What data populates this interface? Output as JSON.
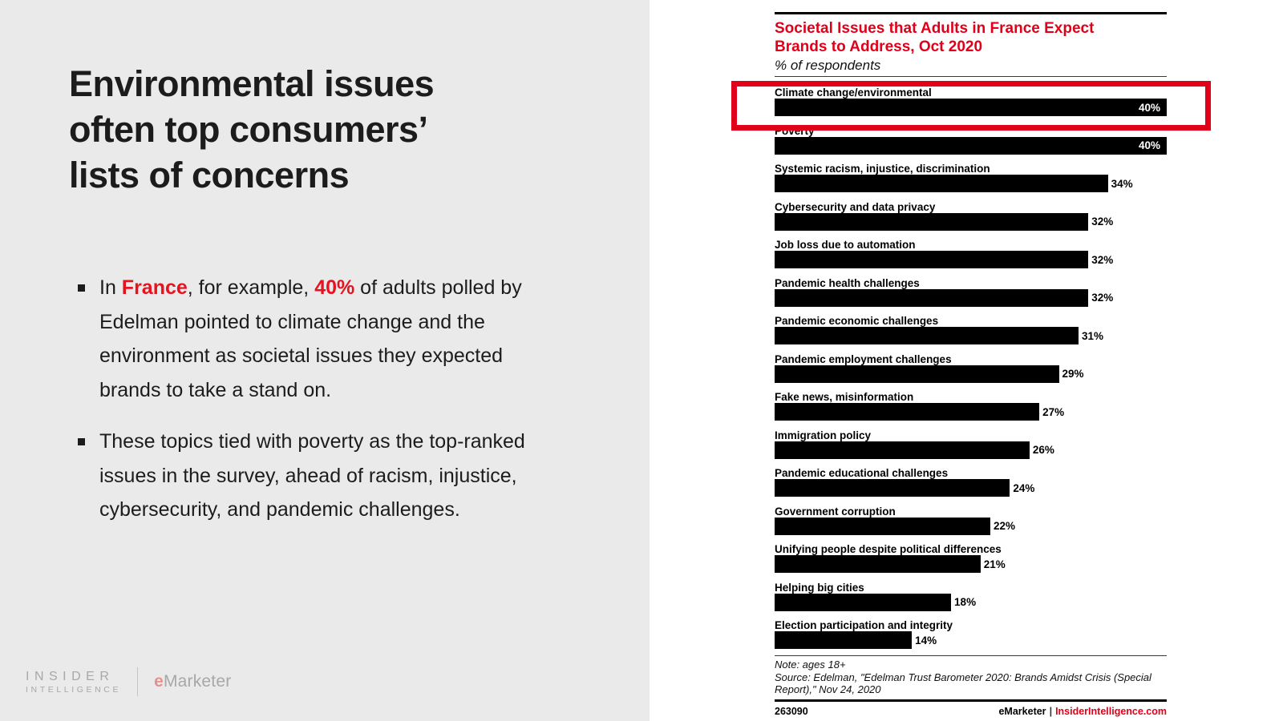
{
  "colors": {
    "slide_bg": "#eaeaea",
    "slide_red": "#e8121f",
    "chart_red": "#e10019",
    "text_dark": "#1c1c1c",
    "bar_black": "#000000",
    "logo_gray": "#a8a8a8",
    "logo_e_red": "#e5928c"
  },
  "slide": {
    "title_lines": [
      "Environmental issues",
      "often top consumers’",
      "lists of concerns"
    ],
    "bullets": [
      {
        "segments": [
          {
            "t": "In ",
            "em": false
          },
          {
            "t": "France",
            "em": true
          },
          {
            "t": ", for example, ",
            "em": false
          },
          {
            "t": "40%",
            "em": true
          },
          {
            "t": " of adults polled by Edelman pointed to climate change and the environment as societal issues they expected brands to take a stand on.",
            "em": false
          }
        ]
      },
      {
        "segments": [
          {
            "t": "These topics tied with poverty as the top-ranked issues in the survey, ahead of racism, injustice, cybersecurity, and pandemic challenges.",
            "em": false
          }
        ]
      }
    ],
    "logo": {
      "line1": "INSIDER",
      "line2": "INTELLIGENCE",
      "brand_e": "e",
      "brand_rest": "Marketer"
    }
  },
  "chart_data": {
    "type": "bar",
    "orientation": "horizontal",
    "title_lines": [
      "Societal Issues that Adults in France Expect",
      "Brands to Address, Oct 2020"
    ],
    "title": "Societal Issues that Adults in France Expect Brands to Address, Oct 2020",
    "subtitle": "% of respondents",
    "unit": "%",
    "xlim": [
      0,
      40
    ],
    "grid": false,
    "highlight_index": 0,
    "inside_label_min": 40,
    "categories": [
      "Climate change/environmental",
      "Poverty",
      "Systemic racism, injustice, discrimination",
      "Cybersecurity and data privacy",
      "Job loss due to automation",
      "Pandemic health challenges",
      "Pandemic economic challenges",
      "Pandemic employment challenges",
      "Fake news, misinformation",
      "Immigration policy",
      "Pandemic educational challenges",
      "Government corruption",
      "Unifying people despite political differences",
      "Helping big cities",
      "Election participation and integrity"
    ],
    "values": [
      40,
      40,
      34,
      32,
      32,
      32,
      31,
      29,
      27,
      26,
      24,
      22,
      21,
      18,
      14
    ],
    "note": "Note: ages 18+",
    "source": "Source: Edelman, \"Edelman Trust Barometer 2020: Brands Amidst Crisis (Special Report),\" Nov 24, 2020",
    "chart_id": "263090",
    "footer_brand": "eMarketer",
    "footer_separator": "|",
    "footer_site": "InsiderIntelligence.com"
  }
}
